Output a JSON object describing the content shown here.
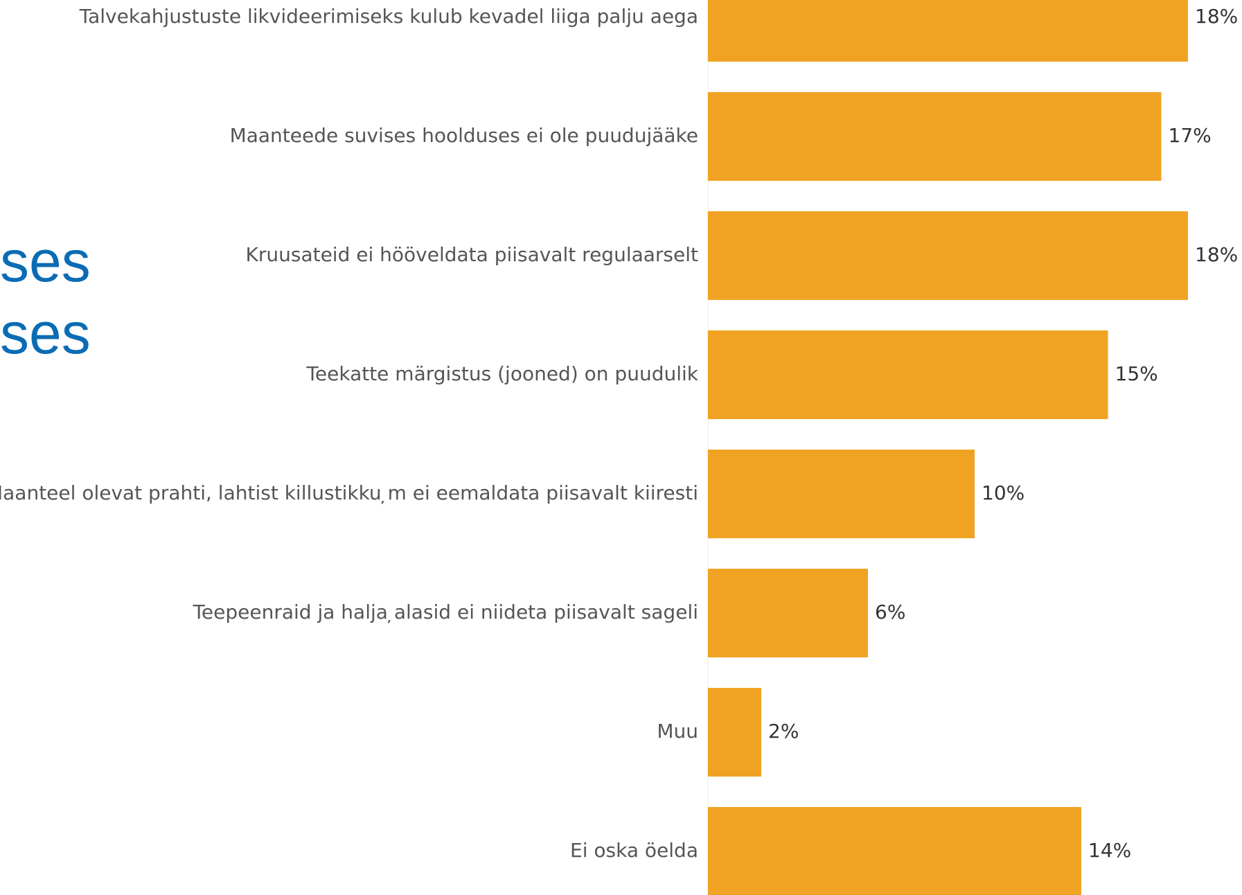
{
  "slide_text": {
    "line1": "ses",
    "line2": "ses"
  },
  "chart_data": {
    "type": "bar",
    "orientation": "horizontal",
    "categories": [
      "Talvekahjustuste likvideerimiseks kulub kevadel liiga palju aega",
      "Maanteede suvises hoolduses ei ole puudujääke",
      "Kruusateid ei hööveldata piisavalt regulaarselt",
      "Teekatte märgistus (jooned) on puudulik",
      "Maanteel olevat prahti, lahtist killustikku ̦m ei eemaldata piisavalt kiiresti",
      "Teepeenraid ja halja ̦alasid ei niideta piisavalt sageli",
      "Muu",
      "Ei oska öelda"
    ],
    "values": [
      18,
      17,
      18,
      15,
      10,
      6,
      2,
      14
    ],
    "value_labels": [
      "18%",
      "17%",
      "18%",
      "15%",
      "10%",
      "6%",
      "2%",
      "14%"
    ],
    "unit": "%",
    "xlim": [
      0,
      18
    ],
    "bar_color": "#f0a323",
    "grid": false,
    "legend": "none"
  }
}
